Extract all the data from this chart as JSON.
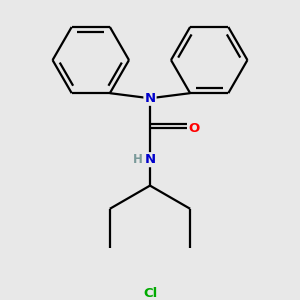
{
  "background_color": "#e8e8e8",
  "line_color": "#000000",
  "N_color": "#0000cc",
  "O_color": "#ff0000",
  "Cl_color": "#00aa00",
  "H_color": "#7a9a9a",
  "line_width": 1.6,
  "figsize": [
    3.0,
    3.0
  ],
  "dpi": 100,
  "xlim": [
    0.05,
    0.95
  ],
  "ylim": [
    0.05,
    0.95
  ]
}
